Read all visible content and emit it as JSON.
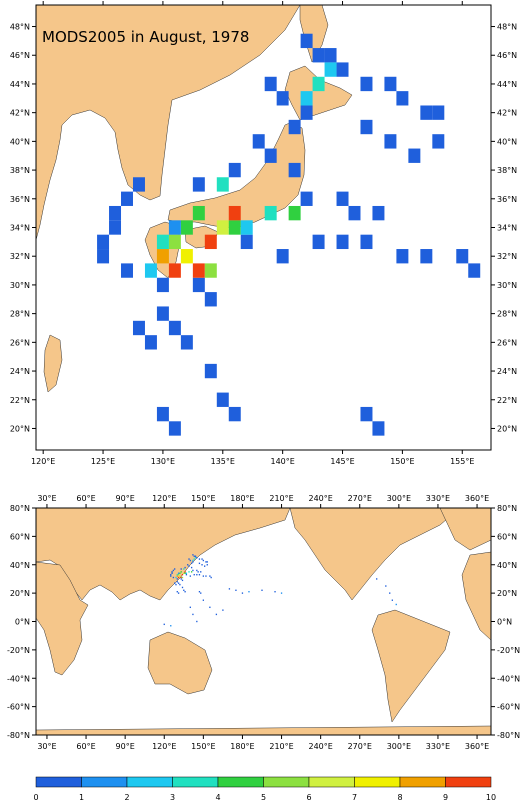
{
  "maps": [
    {
      "title": "MODS2005 in August, 1978",
      "xlim": [
        119.4,
        157.4
      ],
      "ylim": [
        18.5,
        49.5
      ],
      "xticks": [
        {
          "value": 120,
          "label": "120°E"
        },
        {
          "value": 125,
          "label": "125°E"
        },
        {
          "value": 130,
          "label": "130°E"
        },
        {
          "value": 135,
          "label": "135°E"
        },
        {
          "value": 140,
          "label": "140°E"
        },
        {
          "value": 145,
          "label": "145°E"
        },
        {
          "value": 150,
          "label": "150°E"
        },
        {
          "value": 155,
          "label": "155°E"
        }
      ],
      "yticks": [
        {
          "value": 20,
          "label": "20°N"
        },
        {
          "value": 22,
          "label": "22°N"
        },
        {
          "value": 24,
          "label": "24°N"
        },
        {
          "value": 26,
          "label": "26°N"
        },
        {
          "value": 28,
          "label": "28°N"
        },
        {
          "value": 30,
          "label": "30°N"
        },
        {
          "value": 32,
          "label": "32°N"
        },
        {
          "value": 34,
          "label": "34°N"
        },
        {
          "value": 36,
          "label": "36°N"
        },
        {
          "value": 38,
          "label": "38°N"
        },
        {
          "value": 40,
          "label": "40°N"
        },
        {
          "value": 42,
          "label": "42°N"
        },
        {
          "value": 44,
          "label": "44°N"
        },
        {
          "value": 46,
          "label": "46°N"
        },
        {
          "value": 48,
          "label": "48°N"
        }
      ]
    },
    {
      "xlim": [
        21.6,
        370.7
      ],
      "ylim": [
        -80,
        80
      ],
      "xticks": [
        {
          "value": 30,
          "label": "30°E"
        },
        {
          "value": 60,
          "label": "60°E"
        },
        {
          "value": 90,
          "label": "90°E"
        },
        {
          "value": 120,
          "label": "120°E"
        },
        {
          "value": 150,
          "label": "150°E"
        },
        {
          "value": 180,
          "label": "180°E"
        },
        {
          "value": 210,
          "label": "210°E"
        },
        {
          "value": 240,
          "label": "240°E"
        },
        {
          "value": 270,
          "label": "270°E"
        },
        {
          "value": 300,
          "label": "300°E"
        },
        {
          "value": 330,
          "label": "330°E"
        },
        {
          "value": 360,
          "label": "360°E"
        }
      ],
      "yticks": [
        {
          "value": -80,
          "label": "-80°N"
        },
        {
          "value": -60,
          "label": "-60°N"
        },
        {
          "value": -40,
          "label": "-40°N"
        },
        {
          "value": -20,
          "label": "-20°N"
        },
        {
          "value": 0,
          "label": "0°N"
        },
        {
          "value": 20,
          "label": "20°N"
        },
        {
          "value": 40,
          "label": "40°N"
        },
        {
          "value": 60,
          "label": "60°N"
        },
        {
          "value": 80,
          "label": "80°N"
        }
      ]
    }
  ],
  "cells": {
    "lon": [
      142,
      143,
      144,
      145,
      147,
      149,
      150,
      152,
      153,
      142,
      141,
      138,
      139,
      136,
      133,
      128,
      127,
      126,
      126,
      125,
      125,
      127,
      130,
      130,
      131,
      132,
      134,
      135,
      136,
      130,
      131,
      137,
      140,
      143,
      145,
      147,
      150,
      152,
      155,
      156,
      141,
      142,
      145,
      146,
      148,
      140,
      139,
      147,
      149,
      151,
      153,
      128,
      129,
      133,
      134,
      147,
      148,
      130,
      131,
      132,
      133,
      134,
      131,
      130,
      129,
      132,
      133,
      135,
      136,
      136,
      137,
      139,
      141,
      143,
      144,
      142,
      131,
      135,
      134,
      170,
      175,
      180,
      185,
      195,
      205,
      210,
      150,
      155,
      160,
      165,
      140,
      142,
      145,
      120,
      125,
      290,
      293,
      295,
      298,
      283
    ],
    "lat": [
      47,
      46,
      46,
      45,
      44,
      44,
      43,
      42,
      42,
      42,
      41,
      40,
      39,
      38,
      37,
      37,
      36,
      35,
      34,
      33,
      32,
      31,
      30,
      28,
      27,
      26,
      24,
      22,
      21,
      21,
      20,
      33,
      32,
      33,
      33,
      33,
      32,
      32,
      32,
      31,
      38,
      36,
      36,
      35,
      35,
      43,
      44,
      41,
      40,
      39,
      40,
      27,
      26,
      30,
      29,
      21,
      20,
      32,
      31,
      32,
      31,
      33,
      33,
      33,
      31,
      34,
      35,
      34,
      34,
      35,
      34,
      35,
      35,
      44,
      45,
      43,
      34,
      37,
      31,
      23,
      22,
      20,
      21,
      22,
      21,
      20,
      15,
      10,
      5,
      8,
      10,
      5,
      0,
      -2,
      -3,
      25,
      20,
      15,
      12,
      30
    ],
    "values": [
      0.5,
      0.5,
      0.5,
      0.5,
      0.5,
      0.5,
      0.5,
      0.5,
      0.5,
      0.5,
      0.5,
      0.5,
      0.5,
      0.5,
      0.5,
      0.5,
      0.5,
      0.5,
      0.5,
      0.5,
      0.5,
      0.5,
      0.5,
      0.5,
      0.5,
      0.5,
      0.5,
      0.5,
      0.5,
      0.5,
      0.5,
      0.5,
      0.5,
      0.5,
      0.5,
      0.5,
      0.5,
      0.5,
      0.5,
      0.5,
      0.5,
      0.5,
      0.5,
      0.5,
      0.5,
      0.5,
      0.5,
      0.5,
      0.5,
      0.5,
      0.5,
      0.5,
      0.5,
      0.5,
      0.5,
      0.5,
      0.5,
      8.5,
      9.5,
      7,
      9,
      9.5,
      5,
      3.5,
      2.5,
      4.5,
      4,
      6,
      4,
      9.5,
      2,
      3.5,
      4.5,
      3,
      2,
      2.5,
      1.5,
      3,
      5.5,
      0.5,
      0.5,
      0.5,
      1,
      0.5,
      0.5,
      1,
      0.5,
      0.5,
      0.5,
      0.5,
      0.5,
      0.5,
      0.5,
      0.5,
      1,
      0.5,
      0.5,
      0.5,
      1,
      0.5
    ]
  },
  "colorbar": {
    "levels": [
      0,
      1,
      2,
      3,
      4,
      5,
      6,
      7,
      8,
      9,
      10
    ],
    "colors": [
      "#1f5fdc",
      "#1e90f0",
      "#1ec8f0",
      "#20e0c0",
      "#30d040",
      "#8ce040",
      "#d0f040",
      "#f0f000",
      "#f0a000",
      "#f04010"
    ]
  }
}
